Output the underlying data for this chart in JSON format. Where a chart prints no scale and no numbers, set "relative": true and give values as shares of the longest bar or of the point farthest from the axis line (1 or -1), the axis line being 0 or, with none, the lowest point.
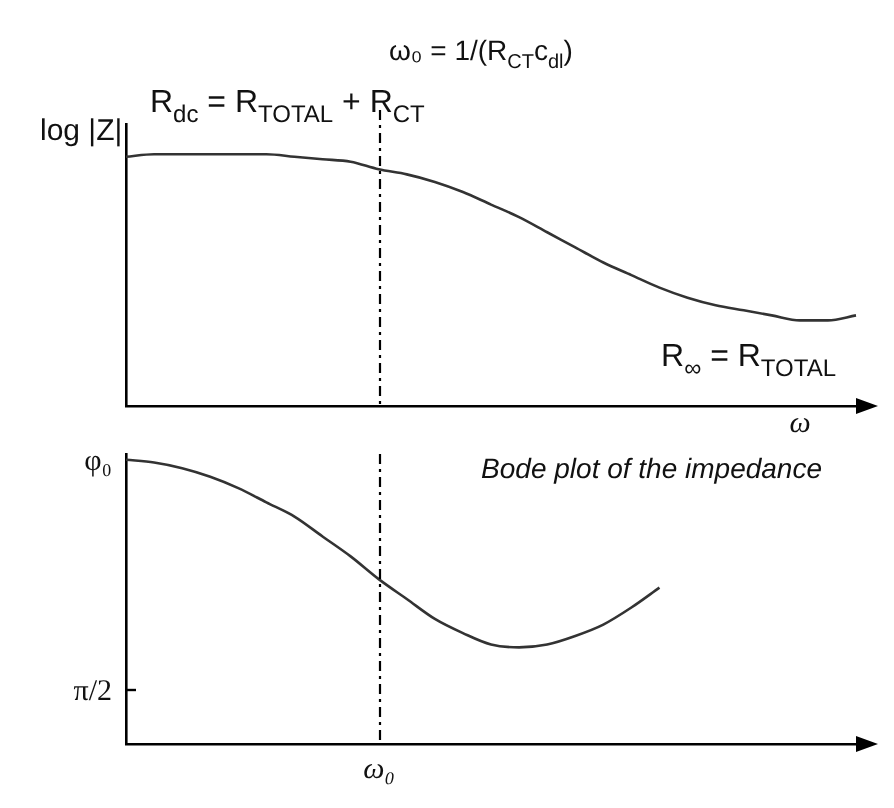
{
  "chart_data": [
    {
      "type": "line",
      "ylabel": "log |Z|",
      "xlabel": "ω",
      "relative": true,
      "categories": [
        null,
        null,
        null,
        null,
        null,
        null,
        null,
        null,
        null,
        null,
        null,
        null,
        null,
        null,
        null,
        null,
        null,
        null,
        null,
        null,
        null,
        null,
        null,
        null,
        null,
        null,
        null
      ],
      "series": [
        {
          "color": "#333333",
          "values": [
            0.99,
            1,
            1,
            1,
            1,
            1,
            0.99,
            0.98,
            0.97,
            0.94,
            0.92,
            0.89,
            0.85,
            0.8,
            0.75,
            0.69,
            0.63,
            0.57,
            0.52,
            0.47,
            0.43,
            0.4,
            0.38,
            0.36,
            0.34,
            0.34,
            0.36
          ]
        }
      ],
      "annotations": [
        "ω₀ = 1/(R$_{CT}$c$_{dl}$)",
        "R$_{dc}$ = R$_{TOTAL}$ + R$_{CT}$",
        "R$_{∞}$ = R$_{TOTAL}$"
      ]
    },
    {
      "type": "line",
      "relative": true,
      "categories": [
        null,
        null,
        null,
        null,
        null,
        null,
        null,
        null,
        null,
        null,
        null,
        null,
        null,
        null,
        null,
        null,
        null,
        null,
        null,
        null,
        null,
        null,
        null,
        null,
        null,
        null,
        null
      ],
      "series": [
        {
          "color": "#333333",
          "values": [
            1,
            0.99,
            0.97,
            0.94,
            0.9,
            0.85,
            0.8,
            0.73,
            0.66,
            0.58,
            0.51,
            0.44,
            0.39,
            0.35,
            0.34,
            0.35,
            0.38,
            0.42,
            0.48,
            0.55,
            null,
            null,
            null,
            null,
            null,
            null,
            null
          ]
        }
      ],
      "annotations": [
        "Bode plot of the impedance",
        "φ₀",
        "π/2",
        "ω₀"
      ]
    }
  ]
}
